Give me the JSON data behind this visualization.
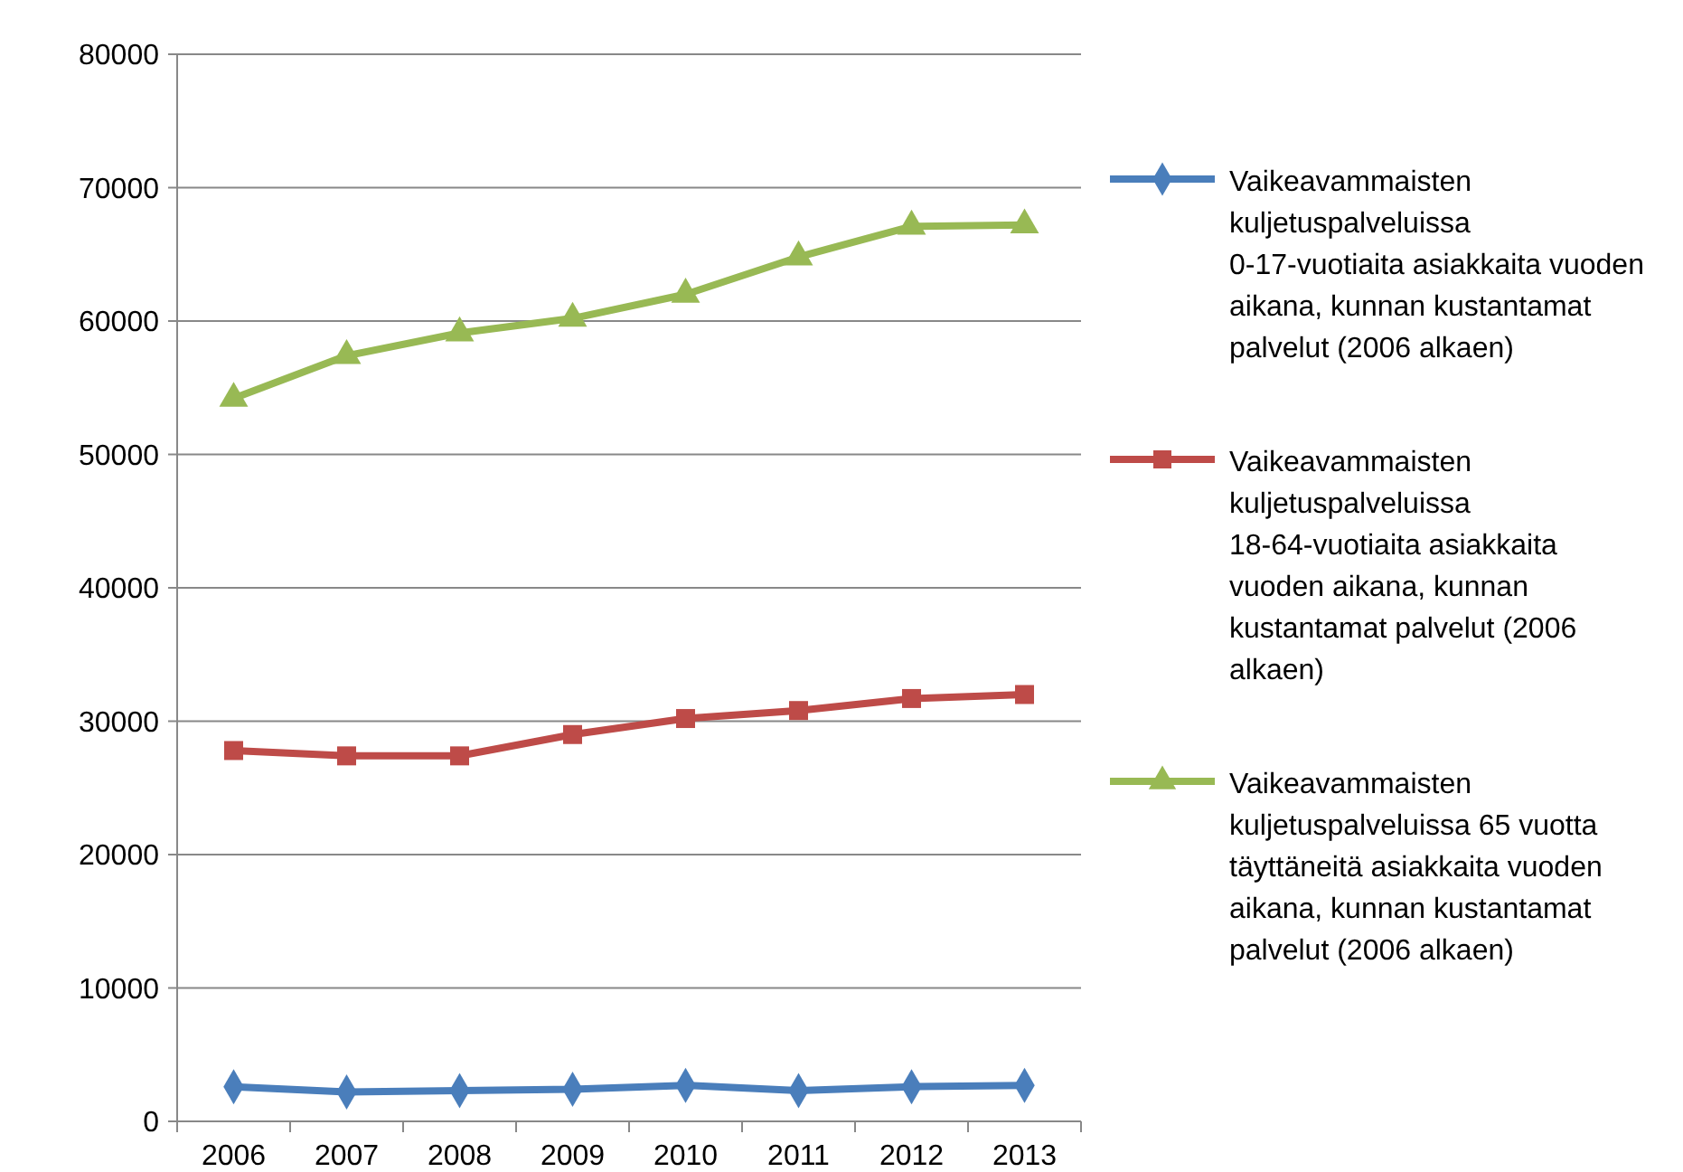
{
  "chart_data": {
    "type": "line",
    "categories": [
      "2006",
      "2007",
      "2008",
      "2009",
      "2010",
      "2011",
      "2012",
      "2013"
    ],
    "series": [
      {
        "name": "Vaikeavammaisten kuljetuspalveluissa 0-17-vuotiaita asiakkaita vuoden aikana, kunnan kustantamat palvelut (2006 alkaen)",
        "color": "#4a7ebb",
        "marker": "diamond",
        "values": [
          2600,
          2200,
          2300,
          2400,
          2700,
          2300,
          2600,
          2700
        ]
      },
      {
        "name": "Vaikeavammaisten kuljetuspalveluissa 18-64-vuotiaita asiakkaita vuoden aikana, kunnan kustantamat palvelut (2006 alkaen)",
        "color": "#be4b48",
        "marker": "square",
        "values": [
          27800,
          27400,
          27400,
          29000,
          30200,
          30800,
          31700,
          32000
        ]
      },
      {
        "name": "Vaikeavammaisten kuljetuspalveluissa 65 vuotta täyttäneitä asiakkaita vuoden aikana, kunnan kustantamat palvelut (2006 alkaen)",
        "color": "#98b954",
        "marker": "triangle",
        "values": [
          54200,
          57400,
          59100,
          60200,
          62000,
          64800,
          67100,
          67200
        ]
      }
    ],
    "ylim": [
      0,
      80000
    ],
    "yticks": [
      0,
      10000,
      20000,
      30000,
      40000,
      50000,
      60000,
      70000,
      80000
    ],
    "grid": "y",
    "legend": "right",
    "line_style": "solid"
  }
}
